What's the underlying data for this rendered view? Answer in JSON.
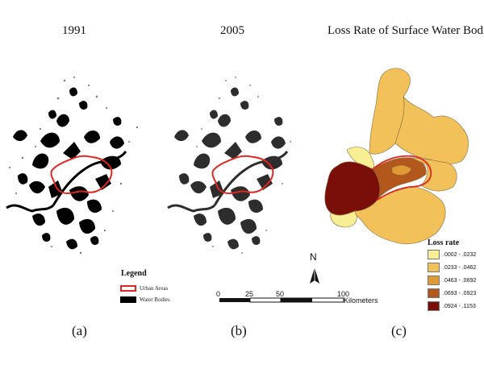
{
  "titles": {
    "a": "1991",
    "b": "2005",
    "c": "Loss Rate of Surface Water Bodies"
  },
  "captions": {
    "a": "(a)",
    "b": "(b)",
    "c": "(c)"
  },
  "legend": {
    "title": "Legend",
    "items": [
      {
        "label": "Urban Areas",
        "color": "#e0261e"
      },
      {
        "label": "Water Bodies",
        "color": "#000000"
      }
    ]
  },
  "loss_legend": {
    "title": "Loss rate",
    "classes": [
      {
        "label": ".0002 - .0232",
        "color": "#f8ee94"
      },
      {
        "label": ".0233 - .0462",
        "color": "#f3c15a"
      },
      {
        "label": ".0463 - .0692",
        "color": "#e09a34"
      },
      {
        "label": ".0693 - .0923",
        "color": "#b2581c"
      },
      {
        "label": ".0924 - .1153",
        "color": "#7a0e08"
      }
    ]
  },
  "scalebar": {
    "ticks": [
      "0",
      "25",
      "50",
      "100"
    ],
    "unit": "Kilometers"
  },
  "north_label": "N"
}
